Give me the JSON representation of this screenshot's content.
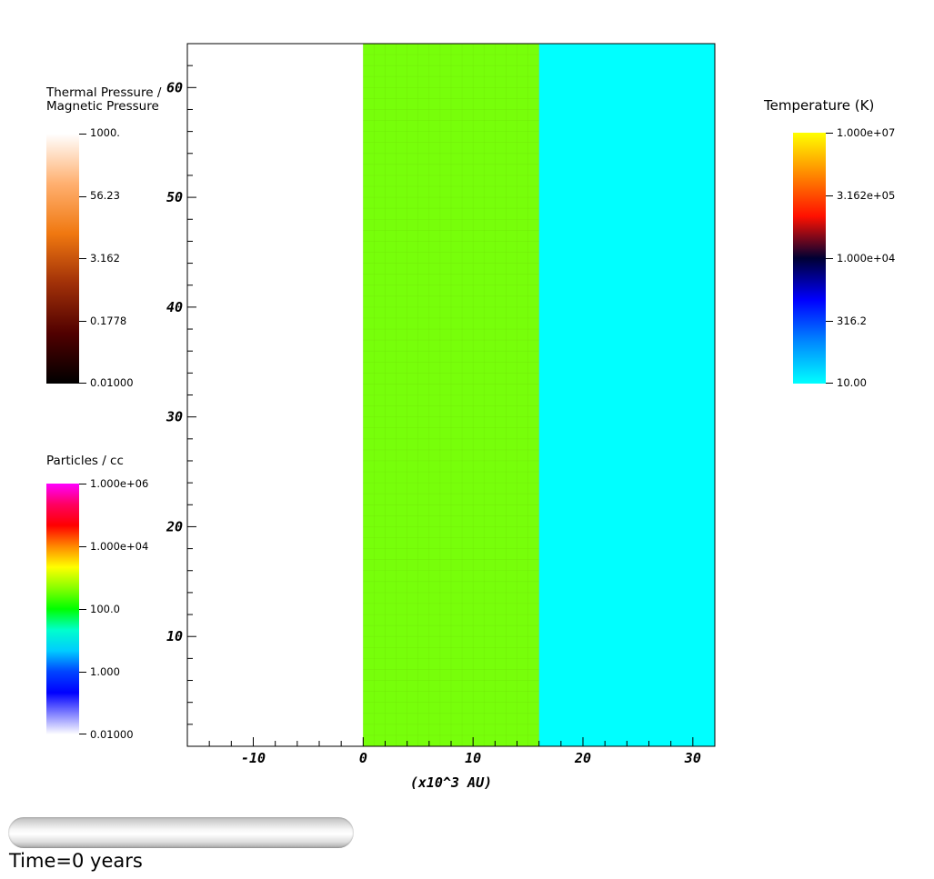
{
  "chart_data": {
    "type": "heatmap",
    "xlabel": "(x10^3 AU)",
    "xlim": [
      -16,
      32
    ],
    "ylim": [
      0,
      64
    ],
    "x_ticks": [
      "-10",
      "0",
      "10",
      "20",
      "30"
    ],
    "y_ticks": [
      "10",
      "20",
      "30",
      "40",
      "50",
      "60"
    ],
    "regions": [
      {
        "x": [
          -16,
          0
        ],
        "color": "#ffffff"
      },
      {
        "x": [
          0,
          16
        ],
        "color": "#77ff0a"
      },
      {
        "x": [
          16,
          32
        ],
        "color": "#00ffff"
      }
    ],
    "colorbars": [
      {
        "title": "Thermal Pressure /\nMagnetic Pressure",
        "labels": [
          "1000.",
          "56.23",
          "3.162",
          "0.1778",
          "0.01000"
        ],
        "colors": [
          "#ffffff",
          "#ffb070",
          "#f07810",
          "#a03008",
          "#500000",
          "#000000"
        ]
      },
      {
        "title": "Particles / cc",
        "labels": [
          "1.000e+06",
          "1.000e+04",
          "100.0",
          "1.000",
          "0.01000"
        ],
        "colors": [
          "#ff00ff",
          "#ff0060",
          "#ff0000",
          "#ff8800",
          "#ffff00",
          "#88ff00",
          "#00ff00",
          "#00ffcc",
          "#00ccff",
          "#0044ff",
          "#0000ff",
          "#8080ff",
          "#ffffff"
        ]
      },
      {
        "title": "Temperature (K)",
        "labels": [
          "1.000e+07",
          "3.162e+05",
          "1.000e+04",
          "316.2",
          "10.00"
        ],
        "colors": [
          "#ffff00",
          "#ff8800",
          "#ff1000",
          "#000033",
          "#0000ff",
          "#0088ff",
          "#00ffff"
        ]
      }
    ],
    "colors": {
      "accent": "#77ff0a",
      "secondary": "#00ffff"
    }
  },
  "time_label": "Time=0 years"
}
